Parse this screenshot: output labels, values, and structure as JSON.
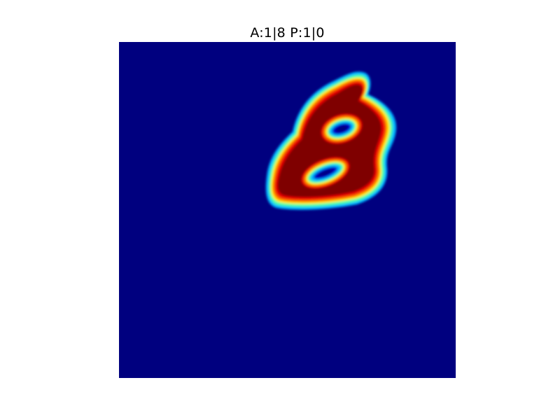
{
  "figure": {
    "title": "A:1|8 P:1|0"
  },
  "heatmap": {
    "colormap": "jet",
    "background_color": "#00007f",
    "hot_color": "#7f0000",
    "depicted_digit": "8"
  }
}
